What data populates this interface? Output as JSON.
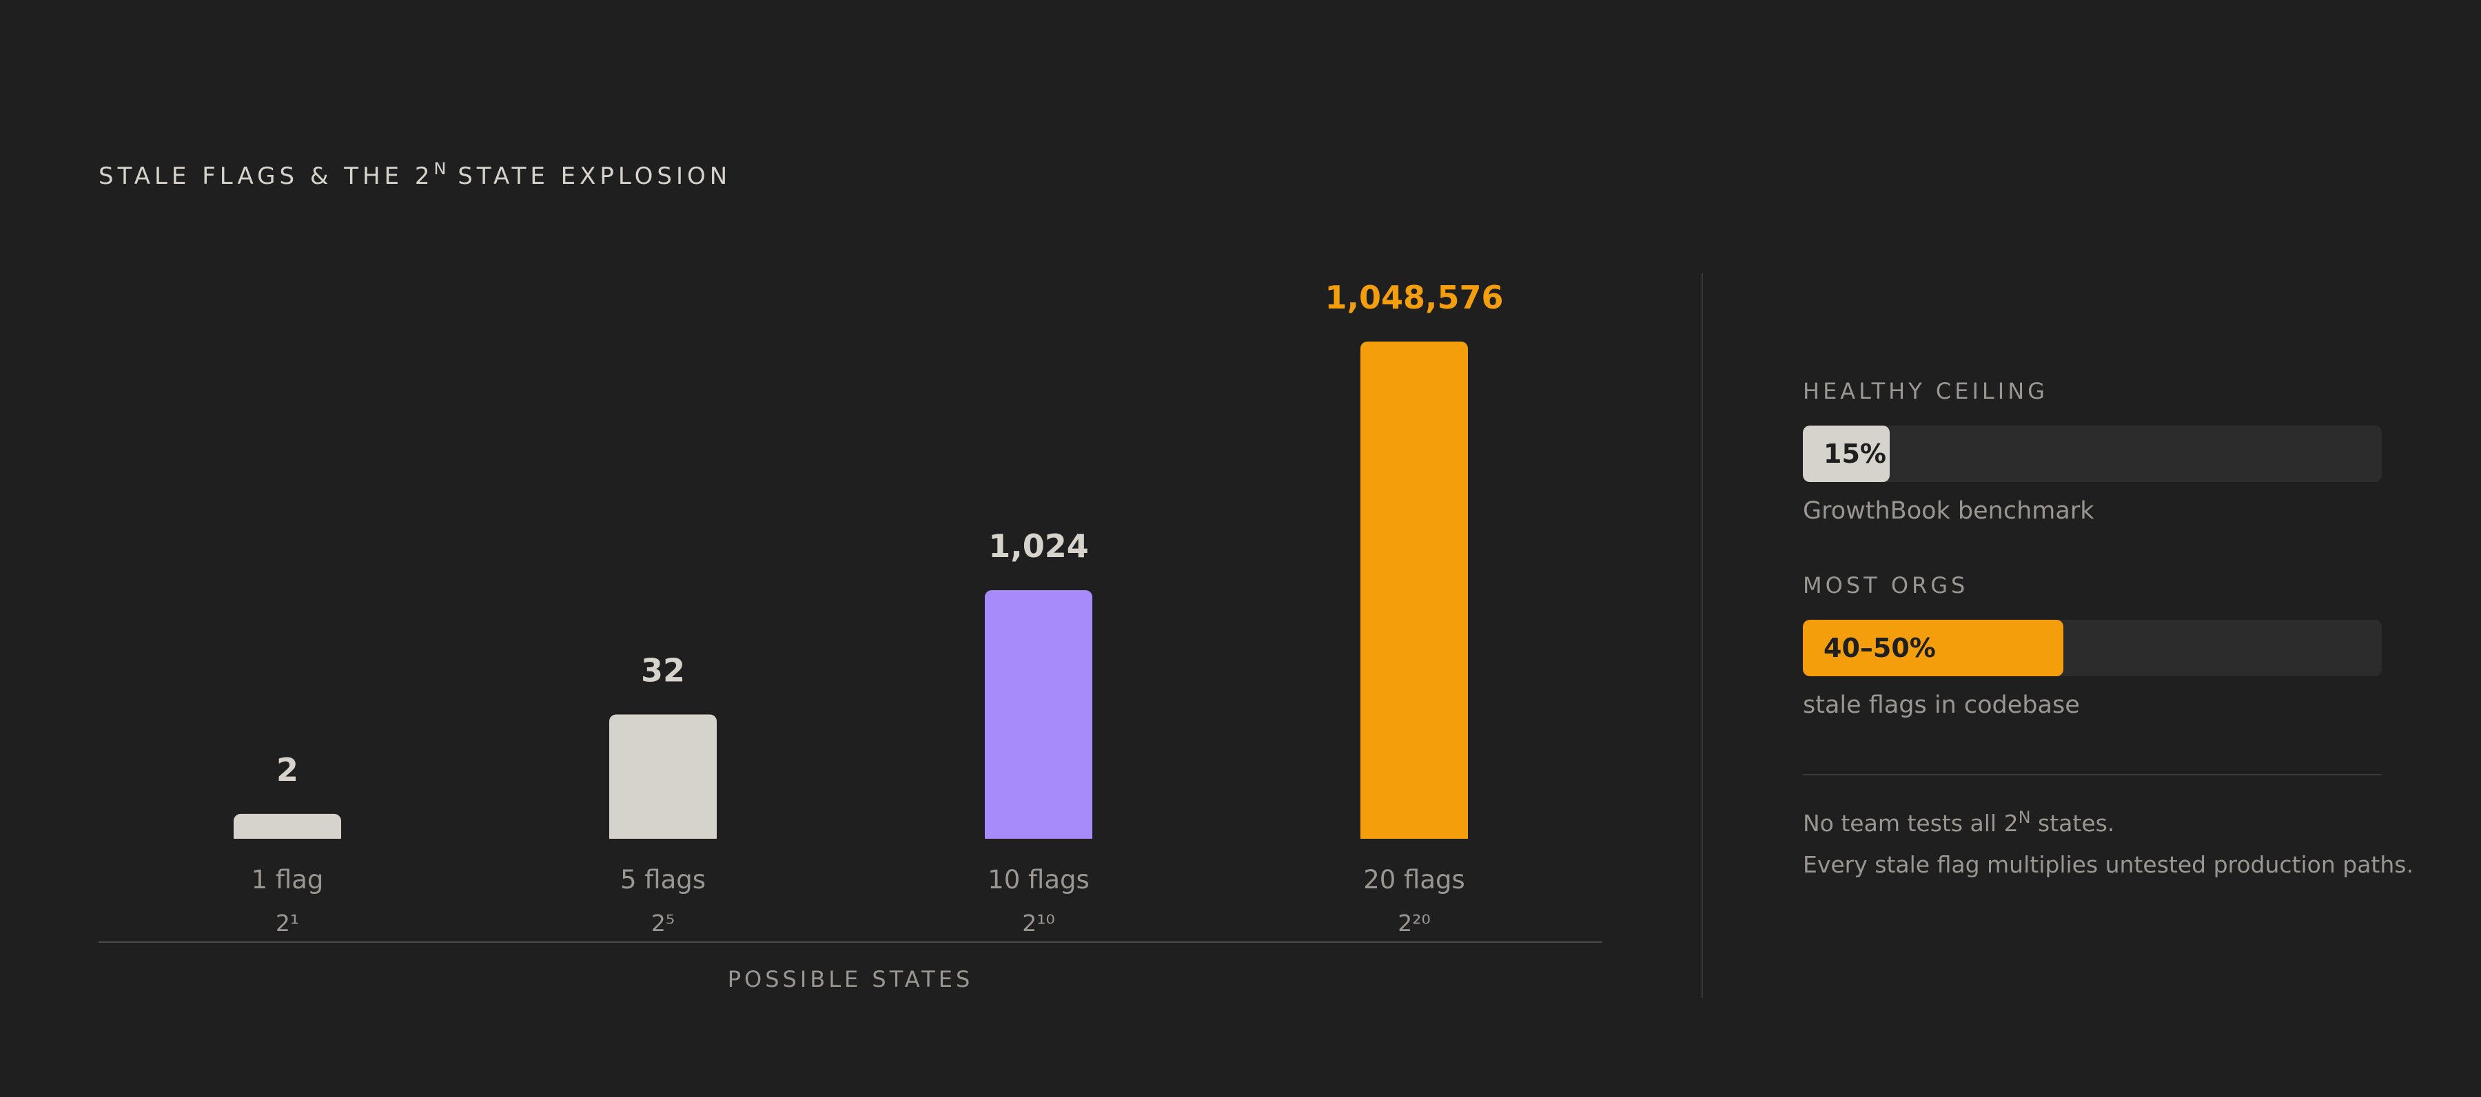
{
  "title": {
    "prefix": "STALE FLAGS & THE 2",
    "sup": "N",
    "suffix": " STATE EXPLOSION"
  },
  "colors": {
    "background": "#1f1f1f",
    "neutral": "#d6d3cc",
    "purple": "#a78bfa",
    "orange": "#f59e0b",
    "muted": "#9a9792"
  },
  "chart_data": {
    "type": "bar",
    "categories": [
      "1 flag",
      "5 flags",
      "10 flags",
      "20 flags"
    ],
    "exponents": [
      "2¹",
      "2⁵",
      "2¹⁰",
      "2²⁰"
    ],
    "values": [
      2,
      32,
      1024,
      1048576
    ],
    "value_labels": [
      "2",
      "32",
      "1,024",
      "1,048,576"
    ],
    "bar_colors": [
      "#d6d3cc",
      "#d6d3cc",
      "#a78bfa",
      "#f59e0b"
    ],
    "label_colors": [
      "#d6d3cc",
      "#d6d3cc",
      "#d6d3cc",
      "#f59e0b"
    ],
    "scale": "log",
    "xlabel": "POSSIBLE STATES",
    "title": "STALE FLAGS & THE 2ᴺ STATE EXPLOSION"
  },
  "side": {
    "healthy": {
      "title": "HEALTHY CEILING",
      "value_label": "15%",
      "fraction": 0.15,
      "note": "GrowthBook benchmark"
    },
    "most": {
      "title": "MOST ORGS",
      "value_label": "40–50%",
      "fraction": 0.45,
      "note": "stale flags in codebase"
    },
    "footer": {
      "line1_prefix": "No team tests all 2",
      "line1_sup": "N",
      "line1_suffix": " states.",
      "line2": "Every stale flag multiplies untested production paths."
    }
  }
}
